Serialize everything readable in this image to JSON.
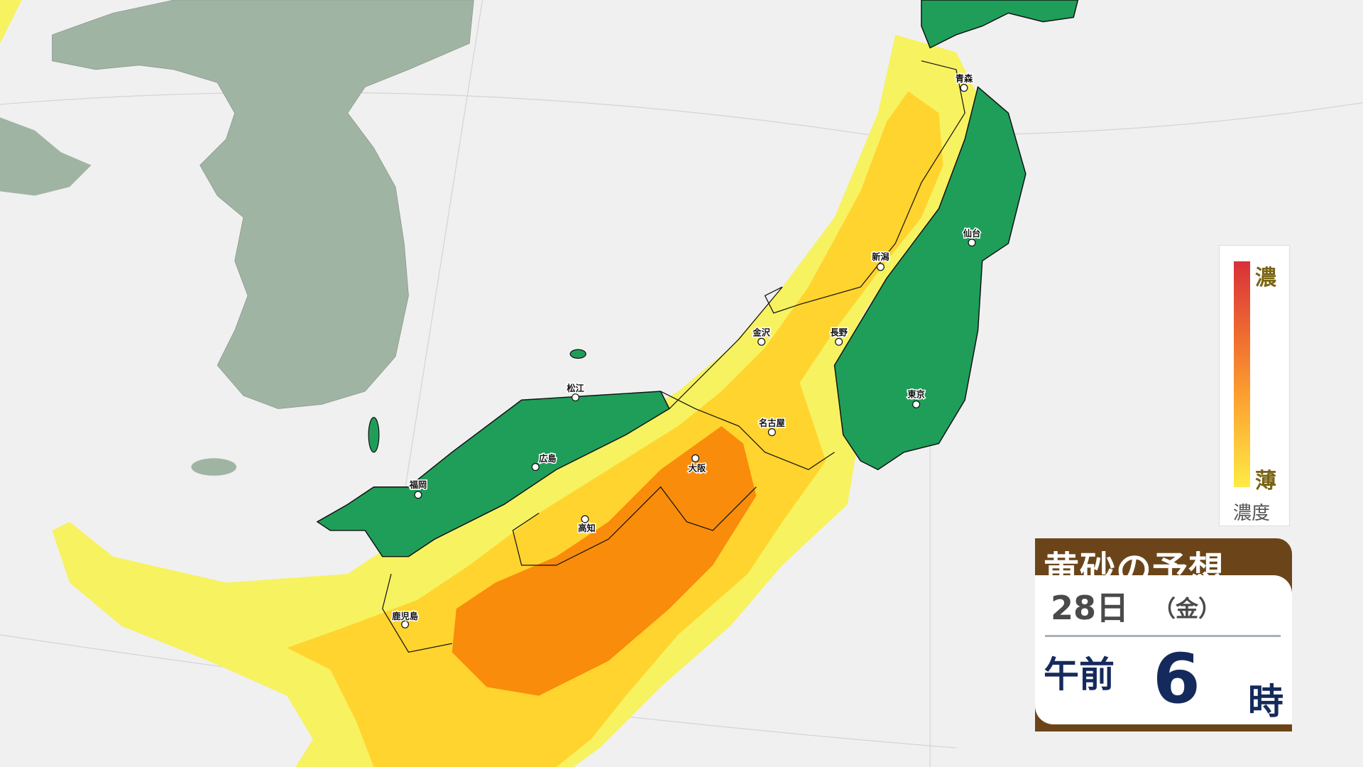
{
  "colors": {
    "sea": "#f0f0f0",
    "land_other": "#a0b4a4",
    "japan_clear": "#1f9e5a",
    "dust_light": "#f7f260",
    "dust_medium": "#ffd42e",
    "dust_heavy": "#f98c0a",
    "header_brown": "#6b4519",
    "time_navy": "#152a5c"
  },
  "cities": [
    {
      "name": "青森"
    },
    {
      "name": "仙台"
    },
    {
      "name": "新潟"
    },
    {
      "name": "金沢"
    },
    {
      "name": "長野"
    },
    {
      "name": "松江"
    },
    {
      "name": "名古屋"
    },
    {
      "name": "東京"
    },
    {
      "name": "広島"
    },
    {
      "name": "大阪"
    },
    {
      "name": "福岡"
    },
    {
      "name": "高知"
    },
    {
      "name": "鹿児島"
    }
  ],
  "legend": {
    "high": "濃",
    "low": "薄",
    "title": "濃度"
  },
  "info": {
    "title": "黄砂の予想",
    "date": "28日",
    "weekday": "（金）",
    "ampm": "午前",
    "hour": "6",
    "hour_unit": "時"
  }
}
